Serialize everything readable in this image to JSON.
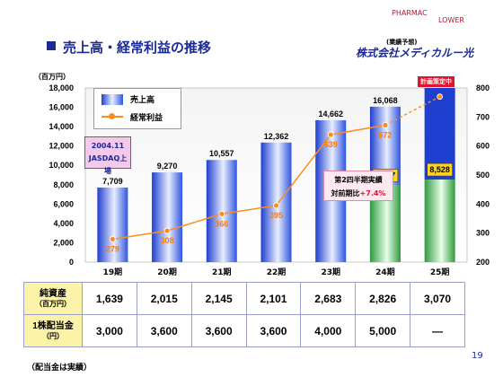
{
  "page": {
    "title": "売上高・経常利益の推移",
    "logo_top": "PHARMAC",
    "logo_top2": "LOWER",
    "logo_note": "(業績予想)",
    "logo_name": "株式会社メディカルー光",
    "footnote": "（配当金は実績）",
    "page_number": "19"
  },
  "chart_data": {
    "type": "bar+line",
    "categories": [
      "19期",
      "20期",
      "21期",
      "22期",
      "23期",
      "24期",
      "25期"
    ],
    "left_axis_unit": "（百万円）",
    "left_ylim": [
      0,
      18000
    ],
    "left_ticks": [
      "0",
      "2,000",
      "4,000",
      "6,000",
      "8,000",
      "10,000",
      "12,000",
      "14,000",
      "16,000",
      "18,000"
    ],
    "right_ylim": [
      200,
      800
    ],
    "right_ticks": [
      "200",
      "300",
      "400",
      "500",
      "600",
      "700",
      "800"
    ],
    "series": [
      {
        "name": "売上高",
        "axis": "left",
        "values": [
          7709,
          9270,
          10557,
          12362,
          14662,
          16068,
          null
        ],
        "labels": [
          "7,709",
          "9,270",
          "10,557",
          "12,362",
          "14,662",
          "16,068",
          ""
        ]
      },
      {
        "name": "経常利益",
        "axis": "right",
        "values": [
          279,
          308,
          366,
          395,
          639,
          672,
          770
        ],
        "labels": [
          "279",
          "308",
          "366",
          "395",
          "639",
          "672",
          ""
        ]
      }
    ],
    "half_year": {
      "label_1": "第2四半期実績",
      "label_2a": "対前期比",
      "label_2b": "+7.4%",
      "value_24": 7937,
      "value_24_label": "7,937",
      "value_25": 8528,
      "value_25_label": "8,528",
      "plan_total": 18000
    },
    "plan_label": "計画策定中",
    "annotation": {
      "line1": "2004.11",
      "line2": "JASDAQ上場"
    }
  },
  "table": {
    "rows": [
      {
        "head": "純資産",
        "sub": "（百万円）",
        "values": [
          "1,639",
          "2,015",
          "2,145",
          "2,101",
          "2,683",
          "2,826",
          "3,070"
        ]
      },
      {
        "head": "1株配当金",
        "sub": "（円）",
        "values": [
          "3,000",
          "3,600",
          "3,600",
          "3,600",
          "4,000",
          "5,000",
          "―"
        ]
      }
    ]
  },
  "colors": {
    "bar_blue": "#1f3fd0",
    "bar_light": "#e8eeff",
    "line": "#ff8c1a",
    "green": "#2e9a3e",
    "title": "#1a2a99"
  }
}
